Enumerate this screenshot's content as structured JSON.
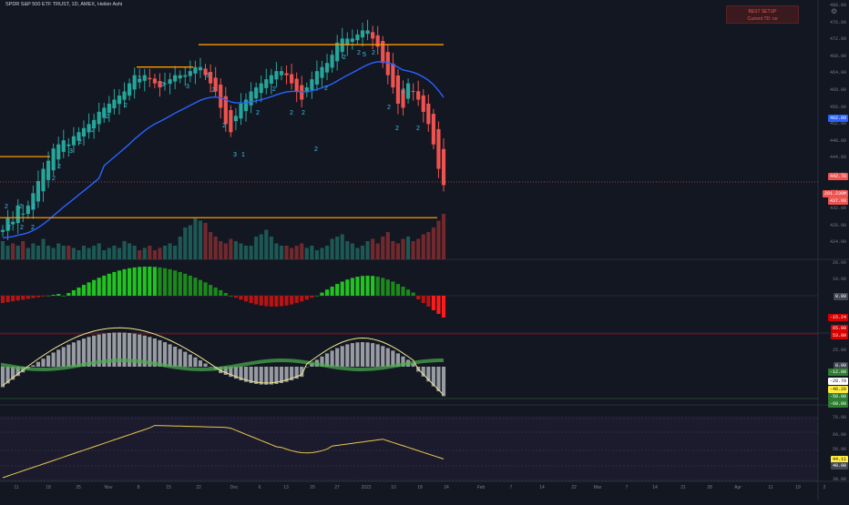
{
  "header": {
    "title": "SPDR S&P 500 ETF TRUST, 1D, AMEX, Heikin Ashi"
  },
  "alert": {
    "line1": "BEST SETUP",
    "line2": "Current TD: no"
  },
  "price_axis": {
    "labels": [
      "480.00",
      "476.00",
      "472.00",
      "468.00",
      "464.00",
      "460.00",
      "456.00",
      "452.00",
      "448.00",
      "444.00",
      "440.00",
      "436.00",
      "432.00",
      "428.00",
      "424.00"
    ],
    "tags": [
      {
        "text": "462.89",
        "color": "#2962ff"
      },
      {
        "text": "442.78",
        "color": "#ef5350"
      },
      {
        "text": "201.239M",
        "color": "#ef5350"
      },
      {
        "text": "437.98",
        "color": "#ef5350"
      }
    ]
  },
  "osc1_axis": {
    "labels": [
      "20.00",
      "10.00",
      "-10.00"
    ],
    "tags": [
      {
        "text": "0.00",
        "color": "#434651"
      },
      {
        "text": "-15.24",
        "color": "#d50000"
      }
    ]
  },
  "osc2_axis": {
    "labels": [
      "25.00",
      "-25.00",
      "-50.00"
    ],
    "tags": [
      {
        "text": "65.00",
        "color": "#d50000"
      },
      {
        "text": "53.80",
        "color": "#d50000"
      },
      {
        "text": "0.00",
        "color": "#434651"
      },
      {
        "text": "-12.80",
        "color": "#2e7d32"
      },
      {
        "text": "-28.70",
        "color": "#ffffff",
        "fg": "#131722"
      },
      {
        "text": "-40.20",
        "color": "#ffeb3b",
        "fg": "#131722"
      },
      {
        "text": "-50.00",
        "color": "#2e7d32"
      },
      {
        "text": "-60.00",
        "color": "#2e7d32"
      }
    ]
  },
  "rsi_axis": {
    "labels": [
      "70.00",
      "60.00",
      "50.00",
      "40.00",
      "30.00"
    ],
    "tags": [
      {
        "text": "44.11",
        "color": "#ffeb3b",
        "fg": "#131722"
      },
      {
        "text": "40.00",
        "color": "#434651"
      }
    ]
  },
  "x_axis": {
    "labels": [
      "11",
      "18",
      "25",
      "Nov",
      "8",
      "15",
      "22",
      "Dec",
      "6",
      "13",
      "20",
      "27",
      "2022",
      "10",
      "18",
      "24",
      "Feb",
      "7",
      "14",
      "22",
      "Mar",
      "7",
      "14",
      "21",
      "28",
      "Apr",
      "11",
      "19",
      "2"
    ]
  },
  "colors": {
    "up": "#26a69a",
    "down": "#ef5350",
    "ma": "#2962ff",
    "level": "#ff9800",
    "rsi": "#e6c84c"
  },
  "chart_data": {
    "type": "candlestick",
    "series_name": "SPY Heikin Ashi",
    "close_last": 442.78,
    "ma_last": 462.89,
    "volume_last": "201.239M",
    "rsi_last": 44.11,
    "levels": [
      476.0,
      472.4,
      449.0,
      434.0
    ]
  }
}
